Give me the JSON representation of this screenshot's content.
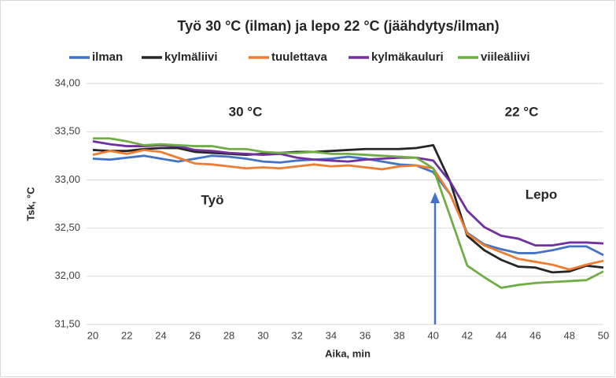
{
  "chart_data": {
    "type": "line",
    "title": "Työ 30 °C (ilman) ja lepo 22 °C (jäähdytys/ilman)",
    "x_label": "Aika, min",
    "y_label": "Tsk, °C",
    "x": [
      20,
      21,
      22,
      23,
      24,
      25,
      26,
      27,
      28,
      29,
      30,
      31,
      32,
      33,
      34,
      35,
      36,
      37,
      38,
      39,
      40,
      41,
      42,
      43,
      44,
      45,
      46,
      47,
      48,
      49,
      50
    ],
    "series": [
      {
        "name": "ilman",
        "color": "#4472c4",
        "values": [
          33.22,
          33.21,
          33.23,
          33.25,
          33.22,
          33.19,
          33.22,
          33.25,
          33.24,
          33.22,
          33.19,
          33.18,
          33.2,
          33.21,
          33.22,
          33.24,
          33.22,
          33.19,
          33.16,
          33.15,
          33.08,
          32.85,
          32.45,
          32.33,
          32.28,
          32.24,
          32.24,
          32.27,
          32.31,
          32.31,
          32.22
        ]
      },
      {
        "name": "kylmäliivi",
        "color": "#262626",
        "values": [
          33.31,
          33.3,
          33.3,
          33.32,
          33.33,
          33.33,
          33.29,
          33.28,
          33.27,
          33.26,
          33.27,
          33.28,
          33.29,
          33.29,
          33.3,
          33.31,
          33.32,
          33.32,
          33.32,
          33.33,
          33.36,
          32.98,
          32.42,
          32.27,
          32.17,
          32.1,
          32.09,
          32.04,
          32.05,
          32.11,
          32.09
        ]
      },
      {
        "name": "tuulettava",
        "color": "#ed7d31",
        "values": [
          33.26,
          33.3,
          33.27,
          33.31,
          33.29,
          33.23,
          33.17,
          33.16,
          33.14,
          33.12,
          33.13,
          33.12,
          33.14,
          33.16,
          33.14,
          33.15,
          33.13,
          33.11,
          33.14,
          33.15,
          33.12,
          32.85,
          32.44,
          32.32,
          32.25,
          32.18,
          32.15,
          32.12,
          32.07,
          32.12,
          32.16
        ]
      },
      {
        "name": "kylmäkauluri",
        "color": "#7030a0",
        "values": [
          33.4,
          33.37,
          33.35,
          33.35,
          33.36,
          33.35,
          33.31,
          33.3,
          33.28,
          33.27,
          33.26,
          33.27,
          33.23,
          33.21,
          33.2,
          33.19,
          33.21,
          33.22,
          33.23,
          33.23,
          33.2,
          32.98,
          32.68,
          32.51,
          32.42,
          32.39,
          32.32,
          32.32,
          32.35,
          32.35,
          32.34
        ]
      },
      {
        "name": "viileäliivi",
        "color": "#70ad47",
        "values": [
          33.43,
          33.43,
          33.4,
          33.36,
          33.37,
          33.36,
          33.35,
          33.35,
          33.32,
          33.32,
          33.29,
          33.28,
          33.28,
          33.29,
          33.27,
          33.27,
          33.26,
          33.25,
          33.24,
          33.23,
          33.12,
          32.62,
          32.11,
          31.99,
          31.88,
          31.91,
          31.93,
          31.94,
          31.95,
          31.96,
          32.05
        ]
      }
    ],
    "xlim": [
      20,
      50
    ],
    "xticks": [
      20,
      22,
      24,
      26,
      28,
      30,
      32,
      34,
      36,
      38,
      40,
      42,
      44,
      46,
      48,
      50
    ],
    "ylim": [
      31.5,
      34.0
    ],
    "yticks": [
      {
        "value": 31.5,
        "label": "31,50"
      },
      {
        "value": 32.0,
        "label": "32,00"
      },
      {
        "value": 32.5,
        "label": "32,50"
      },
      {
        "value": 33.0,
        "label": "33,00"
      },
      {
        "value": 33.5,
        "label": "33,50"
      },
      {
        "value": 34.0,
        "label": "34,00"
      }
    ],
    "grid": true,
    "annotations": [
      "30 °C",
      "22 °C",
      "Työ",
      "Lepo"
    ]
  }
}
